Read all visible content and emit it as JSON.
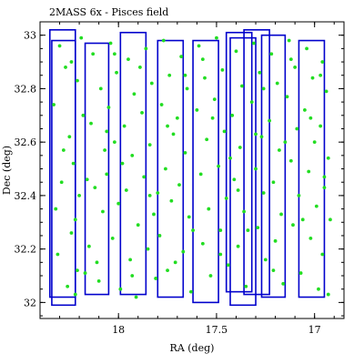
{
  "chart_data": {
    "type": "scatter",
    "title": "2MASS 6x - Pisces field",
    "xlabel": "RA (deg)",
    "ylabel": "Dec (deg)",
    "xlim": [
      18.4,
      16.85
    ],
    "ylim": [
      31.94,
      33.05
    ],
    "x_axis_inverted": true,
    "xticks": [
      18,
      17.5,
      17
    ],
    "xtick_labels": [
      "18",
      "17.5",
      "17"
    ],
    "yticks": [
      32,
      32.2,
      32.4,
      32.6,
      32.8,
      33
    ],
    "ytick_labels": [
      "32",
      "32.2",
      "32.4",
      "32.6",
      "32.8",
      "33"
    ],
    "grid": false,
    "colors": {
      "points": "#22dd22",
      "fields": "#0000cc",
      "frame": "#000000"
    },
    "fields": [
      {
        "ra": [
          18.35,
          18.22
        ],
        "dec": [
          32.02,
          33.02
        ]
      },
      {
        "ra": [
          18.34,
          18.22
        ],
        "dec": [
          31.99,
          32.98
        ]
      },
      {
        "ra": [
          18.17,
          18.05
        ],
        "dec": [
          32.03,
          32.97
        ]
      },
      {
        "ra": [
          17.99,
          17.86
        ],
        "dec": [
          32.03,
          33.01
        ]
      },
      {
        "ra": [
          17.8,
          17.67
        ],
        "dec": [
          32.02,
          32.98
        ]
      },
      {
        "ra": [
          17.62,
          17.49
        ],
        "dec": [
          32.0,
          32.98
        ]
      },
      {
        "ra": [
          17.45,
          17.32
        ],
        "dec": [
          32.04,
          33.01
        ]
      },
      {
        "ra": [
          17.43,
          17.3
        ],
        "dec": [
          31.99,
          32.99
        ]
      },
      {
        "ra": [
          17.36,
          17.23
        ],
        "dec": [
          32.03,
          33.02
        ]
      },
      {
        "ra": [
          17.27,
          17.15
        ],
        "dec": [
          32.02,
          33.0
        ]
      },
      {
        "ra": [
          17.08,
          16.95
        ],
        "dec": [
          32.02,
          32.98
        ]
      }
    ],
    "sources": [
      [
        18.3,
        32.96
      ],
      [
        18.27,
        32.88
      ],
      [
        18.33,
        32.74
      ],
      [
        18.25,
        32.62
      ],
      [
        18.29,
        32.45
      ],
      [
        18.22,
        32.31
      ],
      [
        18.31,
        32.18
      ],
      [
        18.26,
        32.06
      ],
      [
        18.19,
        32.99
      ],
      [
        18.21,
        32.83
      ],
      [
        18.18,
        32.7
      ],
      [
        18.23,
        32.52
      ],
      [
        18.2,
        32.4
      ],
      [
        18.24,
        32.26
      ],
      [
        18.17,
        32.11
      ],
      [
        18.22,
        32.03
      ],
      [
        18.13,
        32.93
      ],
      [
        18.09,
        32.8
      ],
      [
        18.14,
        32.67
      ],
      [
        18.07,
        32.57
      ],
      [
        18.12,
        32.43
      ],
      [
        18.08,
        32.34
      ],
      [
        18.15,
        32.21
      ],
      [
        18.1,
        32.08
      ],
      [
        18.04,
        32.97
      ],
      [
        18.01,
        32.86
      ],
      [
        18.05,
        32.73
      ],
      [
        18.02,
        32.6
      ],
      [
        18.06,
        32.48
      ],
      [
        18.0,
        32.37
      ],
      [
        18.03,
        32.24
      ],
      [
        17.99,
        32.05
      ],
      [
        17.95,
        32.91
      ],
      [
        17.92,
        32.78
      ],
      [
        17.97,
        32.66
      ],
      [
        17.93,
        32.55
      ],
      [
        17.96,
        32.42
      ],
      [
        17.9,
        32.29
      ],
      [
        17.94,
        32.16
      ],
      [
        17.91,
        32.02
      ],
      [
        17.86,
        32.95
      ],
      [
        17.83,
        32.82
      ],
      [
        17.88,
        32.71
      ],
      [
        17.84,
        32.59
      ],
      [
        17.87,
        32.47
      ],
      [
        17.82,
        32.33
      ],
      [
        17.85,
        32.2
      ],
      [
        17.81,
        32.09
      ],
      [
        17.77,
        32.98
      ],
      [
        17.74,
        32.85
      ],
      [
        17.78,
        32.74
      ],
      [
        17.72,
        32.63
      ],
      [
        17.76,
        32.5
      ],
      [
        17.73,
        32.38
      ],
      [
        17.79,
        32.25
      ],
      [
        17.75,
        32.12
      ],
      [
        17.68,
        32.92
      ],
      [
        17.65,
        32.8
      ],
      [
        17.7,
        32.69
      ],
      [
        17.66,
        32.56
      ],
      [
        17.69,
        32.44
      ],
      [
        17.64,
        32.32
      ],
      [
        17.67,
        32.19
      ],
      [
        17.63,
        32.04
      ],
      [
        17.59,
        32.96
      ],
      [
        17.56,
        32.84
      ],
      [
        17.6,
        32.72
      ],
      [
        17.55,
        32.61
      ],
      [
        17.58,
        32.48
      ],
      [
        17.54,
        32.35
      ],
      [
        17.57,
        32.22
      ],
      [
        17.53,
        32.1
      ],
      [
        17.5,
        32.99
      ],
      [
        17.47,
        32.87
      ],
      [
        17.51,
        32.76
      ],
      [
        17.46,
        32.64
      ],
      [
        17.49,
        32.51
      ],
      [
        17.45,
        32.39
      ],
      [
        17.48,
        32.27
      ],
      [
        17.44,
        32.14
      ],
      [
        17.4,
        32.94
      ],
      [
        17.37,
        32.81
      ],
      [
        17.42,
        32.7
      ],
      [
        17.38,
        32.58
      ],
      [
        17.41,
        32.46
      ],
      [
        17.36,
        32.34
      ],
      [
        17.39,
        32.21
      ],
      [
        17.35,
        32.06
      ],
      [
        17.31,
        32.97
      ],
      [
        17.28,
        32.86
      ],
      [
        17.32,
        32.75
      ],
      [
        17.27,
        32.62
      ],
      [
        17.3,
        32.5
      ],
      [
        17.26,
        32.41
      ],
      [
        17.29,
        32.28
      ],
      [
        17.25,
        32.16
      ],
      [
        17.22,
        32.93
      ],
      [
        17.19,
        32.82
      ],
      [
        17.23,
        32.68
      ],
      [
        17.18,
        32.57
      ],
      [
        17.21,
        32.45
      ],
      [
        17.17,
        32.33
      ],
      [
        17.2,
        32.23
      ],
      [
        17.16,
        32.07
      ],
      [
        17.13,
        32.98
      ],
      [
        17.1,
        32.88
      ],
      [
        17.14,
        32.77
      ],
      [
        17.09,
        32.65
      ],
      [
        17.12,
        32.53
      ],
      [
        17.08,
        32.4
      ],
      [
        17.11,
        32.29
      ],
      [
        17.07,
        32.11
      ],
      [
        17.04,
        32.95
      ],
      [
        17.01,
        32.84
      ],
      [
        17.05,
        32.72
      ],
      [
        17.0,
        32.6
      ],
      [
        17.03,
        32.49
      ],
      [
        16.99,
        32.36
      ],
      [
        17.02,
        32.24
      ],
      [
        16.98,
        32.05
      ],
      [
        16.96,
        32.9
      ],
      [
        16.94,
        32.79
      ],
      [
        16.97,
        32.66
      ],
      [
        16.93,
        32.54
      ],
      [
        16.95,
        32.43
      ],
      [
        16.92,
        32.31
      ],
      [
        16.96,
        32.18
      ],
      [
        16.93,
        32.03
      ],
      [
        18.28,
        32.57
      ],
      [
        18.11,
        32.15
      ],
      [
        17.98,
        32.52
      ],
      [
        17.8,
        32.41
      ],
      [
        17.62,
        32.27
      ],
      [
        17.43,
        32.54
      ],
      [
        17.26,
        32.8
      ],
      [
        17.06,
        32.31
      ],
      [
        18.24,
        32.9
      ],
      [
        18.06,
        32.64
      ],
      [
        17.89,
        32.88
      ],
      [
        17.71,
        32.15
      ],
      [
        17.52,
        32.69
      ],
      [
        17.34,
        32.27
      ],
      [
        17.15,
        32.6
      ],
      [
        16.97,
        32.85
      ],
      [
        18.32,
        32.35
      ],
      [
        18.16,
        32.46
      ],
      [
        17.93,
        32.1
      ],
      [
        17.75,
        32.66
      ],
      [
        17.57,
        32.91
      ],
      [
        17.39,
        32.42
      ],
      [
        17.21,
        32.12
      ],
      [
        17.02,
        32.69
      ],
      [
        18.21,
        32.12
      ],
      [
        18.02,
        32.93
      ],
      [
        17.84,
        32.4
      ],
      [
        17.66,
        32.85
      ],
      [
        17.48,
        32.18
      ],
      [
        17.3,
        32.63
      ],
      [
        17.12,
        32.91
      ],
      [
        16.95,
        32.47
      ]
    ]
  }
}
